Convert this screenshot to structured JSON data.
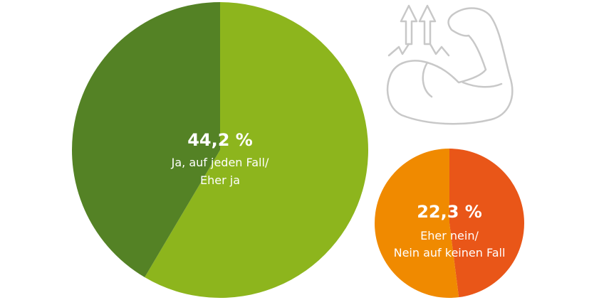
{
  "chart_data": [
    {
      "type": "pie",
      "slices": [
        {
          "share": 0.585,
          "color": "#8db51d"
        },
        {
          "share": 0.415,
          "color": "#548225"
        }
      ],
      "center_value": "44,2 %",
      "center_label_lines": [
        "Ja, auf jeden Fall/",
        "Eher ja"
      ]
    },
    {
      "type": "pie",
      "slices": [
        {
          "share": 0.48,
          "color": "#e95618"
        },
        {
          "share": 0.52,
          "color": "#f08a00"
        }
      ],
      "center_value": "22,3 %",
      "center_label_lines": [
        "Eher nein/",
        "Nein auf keinen Fall"
      ]
    }
  ],
  "decoration": {
    "icon": "flexed-bicep-arrows-icon",
    "stroke_color": "#c8c8c8"
  }
}
